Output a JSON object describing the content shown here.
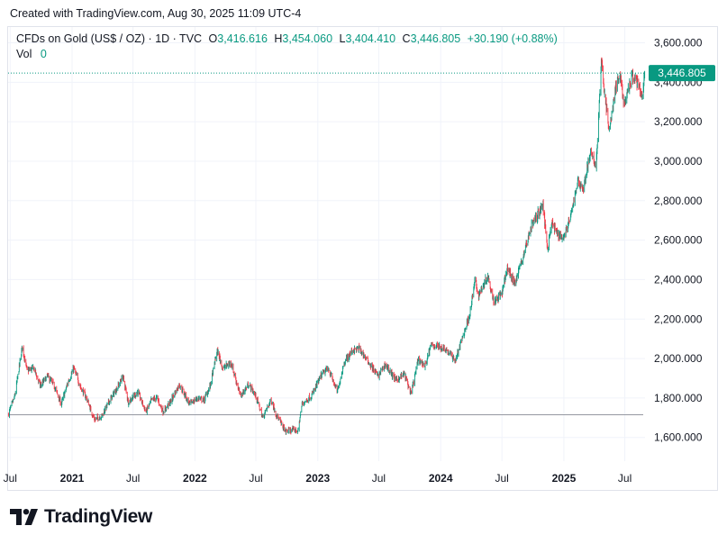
{
  "caption": "Created with TradingView.com, Aug 30, 2025 11:09 UTC-4",
  "legend": {
    "symbol": "CFDs on Gold (US$ / OZ) · 1D · TVC",
    "open_label": "O",
    "open": "3,416.616",
    "high_label": "H",
    "high": "3,454.060",
    "low_label": "L",
    "low": "3,404.410",
    "close_label": "C",
    "close": "3,446.805",
    "change": "+30.190 (+0.88%)"
  },
  "volume": {
    "label": "Vol",
    "value": "0"
  },
  "brand": {
    "name": "TradingView"
  },
  "colors": {
    "up": "#089981",
    "down": "#f23645",
    "price_line": "#089981",
    "grid": "#f0f3fa",
    "axis_text": "#131722"
  },
  "chart_data": {
    "type": "candlestick",
    "title": "CFDs on Gold (US$ / OZ) · 1D · TVC",
    "ylim": [
      1480,
      3680
    ],
    "y_ticks": [
      "3,600.000",
      "3,400.000",
      "3,200.000",
      "3,000.000",
      "2,800.000",
      "2,600.000",
      "2,400.000",
      "2,200.000",
      "2,000.000",
      "1,800.000",
      "1,600.000"
    ],
    "y_tick_values": [
      3600,
      3400,
      3200,
      3000,
      2800,
      2600,
      2400,
      2200,
      2000,
      1800,
      1600
    ],
    "x_range": [
      "2020-06-25",
      "2025-08-30"
    ],
    "x_ticks": [
      {
        "label": "Jul",
        "date": "2020-07-01",
        "bold": false
      },
      {
        "label": "2021",
        "date": "2021-01-01",
        "bold": true
      },
      {
        "label": "Jul",
        "date": "2021-07-01",
        "bold": false
      },
      {
        "label": "2022",
        "date": "2022-01-01",
        "bold": true
      },
      {
        "label": "Jul",
        "date": "2022-07-01",
        "bold": false
      },
      {
        "label": "2023",
        "date": "2023-01-01",
        "bold": true
      },
      {
        "label": "Jul",
        "date": "2023-07-01",
        "bold": false
      },
      {
        "label": "2024",
        "date": "2024-01-01",
        "bold": true
      },
      {
        "label": "Jul",
        "date": "2024-07-01",
        "bold": false
      },
      {
        "label": "2025",
        "date": "2025-01-01",
        "bold": true
      },
      {
        "label": "Jul",
        "date": "2025-07-01",
        "bold": false
      }
    ],
    "last_price": 3446.805,
    "last_price_label": "3,446.805",
    "reference_line": 1715,
    "approx_close_path": [
      [
        "2020-06-26",
        1720
      ],
      [
        "2020-07-15",
        1810
      ],
      [
        "2020-08-06",
        2060
      ],
      [
        "2020-08-20",
        1940
      ],
      [
        "2020-09-10",
        1950
      ],
      [
        "2020-09-28",
        1860
      ],
      [
        "2020-10-20",
        1910
      ],
      [
        "2020-11-09",
        1860
      ],
      [
        "2020-11-30",
        1770
      ],
      [
        "2020-12-20",
        1880
      ],
      [
        "2021-01-06",
        1950
      ],
      [
        "2021-01-25",
        1860
      ],
      [
        "2021-02-15",
        1790
      ],
      [
        "2021-03-08",
        1690
      ],
      [
        "2021-03-31",
        1710
      ],
      [
        "2021-04-20",
        1780
      ],
      [
        "2021-05-15",
        1850
      ],
      [
        "2021-06-01",
        1910
      ],
      [
        "2021-06-17",
        1780
      ],
      [
        "2021-07-15",
        1830
      ],
      [
        "2021-08-09",
        1730
      ],
      [
        "2021-08-25",
        1790
      ],
      [
        "2021-09-10",
        1800
      ],
      [
        "2021-09-29",
        1730
      ],
      [
        "2021-10-20",
        1780
      ],
      [
        "2021-11-16",
        1870
      ],
      [
        "2021-12-15",
        1770
      ],
      [
        "2022-01-10",
        1800
      ],
      [
        "2022-01-28",
        1790
      ],
      [
        "2022-02-15",
        1860
      ],
      [
        "2022-03-08",
        2040
      ],
      [
        "2022-03-25",
        1950
      ],
      [
        "2022-04-18",
        1980
      ],
      [
        "2022-05-16",
        1810
      ],
      [
        "2022-06-10",
        1870
      ],
      [
        "2022-07-01",
        1810
      ],
      [
        "2022-07-21",
        1700
      ],
      [
        "2022-08-15",
        1790
      ],
      [
        "2022-09-01",
        1710
      ],
      [
        "2022-09-28",
        1630
      ],
      [
        "2022-10-20",
        1640
      ],
      [
        "2022-11-03",
        1630
      ],
      [
        "2022-11-15",
        1770
      ],
      [
        "2022-12-13",
        1810
      ],
      [
        "2023-01-13",
        1920
      ],
      [
        "2023-02-01",
        1950
      ],
      [
        "2023-02-28",
        1830
      ],
      [
        "2023-03-20",
        1980
      ],
      [
        "2023-04-13",
        2040
      ],
      [
        "2023-05-04",
        2050
      ],
      [
        "2023-06-01",
        1980
      ],
      [
        "2023-06-29",
        1910
      ],
      [
        "2023-07-20",
        1970
      ],
      [
        "2023-08-21",
        1890
      ],
      [
        "2023-09-15",
        1920
      ],
      [
        "2023-10-05",
        1820
      ],
      [
        "2023-10-27",
        2000
      ],
      [
        "2023-11-15",
        1960
      ],
      [
        "2023-12-04",
        2070
      ],
      [
        "2023-12-28",
        2060
      ],
      [
        "2024-01-15",
        2050
      ],
      [
        "2024-02-14",
        1990
      ],
      [
        "2024-03-01",
        2080
      ],
      [
        "2024-03-28",
        2230
      ],
      [
        "2024-04-12",
        2400
      ],
      [
        "2024-04-22",
        2320
      ],
      [
        "2024-05-20",
        2420
      ],
      [
        "2024-06-07",
        2290
      ],
      [
        "2024-07-01",
        2330
      ],
      [
        "2024-07-17",
        2460
      ],
      [
        "2024-08-07",
        2380
      ],
      [
        "2024-08-30",
        2500
      ],
      [
        "2024-09-26",
        2670
      ],
      [
        "2024-10-30",
        2780
      ],
      [
        "2024-11-14",
        2560
      ],
      [
        "2024-11-25",
        2690
      ],
      [
        "2024-12-10",
        2640
      ],
      [
        "2024-12-30",
        2610
      ],
      [
        "2025-01-20",
        2710
      ],
      [
        "2025-02-11",
        2900
      ],
      [
        "2025-02-28",
        2860
      ],
      [
        "2025-03-20",
        3040
      ],
      [
        "2025-04-07",
        2980
      ],
      [
        "2025-04-22",
        3500
      ],
      [
        "2025-05-15",
        3150
      ],
      [
        "2025-06-05",
        3380
      ],
      [
        "2025-06-16",
        3440
      ],
      [
        "2025-06-30",
        3280
      ],
      [
        "2025-07-22",
        3430
      ],
      [
        "2025-08-08",
        3400
      ],
      [
        "2025-08-20",
        3320
      ],
      [
        "2025-08-29",
        3447
      ]
    ]
  }
}
